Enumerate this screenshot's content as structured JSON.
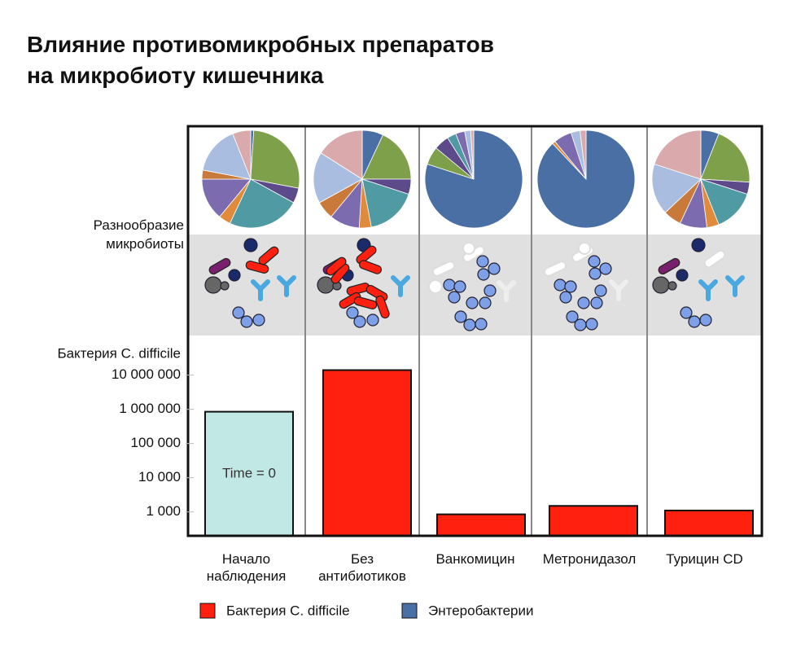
{
  "title": "Влияние противомикробных препаратов\nна микробиоту кишечника",
  "diversity_label": "Разнообразие\nмикробиоты",
  "legend": [
    {
      "label": "Бактерия C. difficile",
      "color": "#ff2010"
    },
    {
      "label": "Энтеробактерии",
      "color": "#4a6fa5"
    }
  ],
  "chart_data": [
    {
      "type": "bar",
      "y_label": "Бактерия C. difficile",
      "categories": [
        "Начало\nнаблюдения",
        "Без\nантибиотиков",
        "Ванкомицин",
        "Метронидазол",
        "Турицин CD"
      ],
      "values": [
        850000,
        14000000,
        850,
        1500,
        1100
      ],
      "colors": [
        "#c2e8e6",
        "#ff2010",
        "#ff2010",
        "#ff2010",
        "#ff2010"
      ],
      "annotation": "Time = 0",
      "log_scale": true,
      "ylim": [
        200,
        20000000
      ],
      "yticks": [
        {
          "value": 10000000,
          "label": "10 000 000"
        },
        {
          "value": 1000000,
          "label": "1 000 000"
        },
        {
          "value": 100000,
          "label": "100 000"
        },
        {
          "value": 10000,
          "label": "10 000"
        },
        {
          "value": 1000,
          "label": "1 000"
        }
      ]
    },
    {
      "type": "pie",
      "values": [
        1,
        27,
        5,
        24,
        4,
        14,
        3,
        16,
        6
      ],
      "colors": [
        "#4a6fa5",
        "#7ea04a",
        "#5d4a8a",
        "#4f9aa3",
        "#e08a3c",
        "#7d6bb0",
        "#c97a3a",
        "#a9bde0",
        "#d9a9ab"
      ]
    },
    {
      "type": "pie",
      "values": [
        7,
        18,
        5,
        17,
        4,
        10,
        6,
        17,
        16
      ],
      "colors": [
        "#4a6fa5",
        "#7ea04a",
        "#5d4a8a",
        "#4f9aa3",
        "#e08a3c",
        "#7d6bb0",
        "#c97a3a",
        "#a9bde0",
        "#d9a9ab"
      ]
    },
    {
      "type": "pie",
      "values": [
        80,
        6,
        5,
        3,
        0,
        3,
        0,
        2,
        1
      ],
      "colors": [
        "#4a6fa5",
        "#7ea04a",
        "#5d4a8a",
        "#4f9aa3",
        "#e08a3c",
        "#7d6bb0",
        "#c97a3a",
        "#a9bde0",
        "#d9a9ab"
      ]
    },
    {
      "type": "pie",
      "values": [
        88,
        0,
        0,
        0,
        1,
        6,
        0,
        3,
        2
      ],
      "colors": [
        "#4a6fa5",
        "#7ea04a",
        "#5d4a8a",
        "#4f9aa3",
        "#e08a3c",
        "#7d6bb0",
        "#c97a3a",
        "#a9bde0",
        "#d9a9ab"
      ]
    },
    {
      "type": "pie",
      "values": [
        6,
        20,
        4,
        14,
        4,
        9,
        6,
        17,
        20
      ],
      "colors": [
        "#4a6fa5",
        "#7ea04a",
        "#5d4a8a",
        "#4f9aa3",
        "#e08a3c",
        "#7d6bb0",
        "#c97a3a",
        "#a9bde0",
        "#d9a9ab"
      ]
    }
  ]
}
